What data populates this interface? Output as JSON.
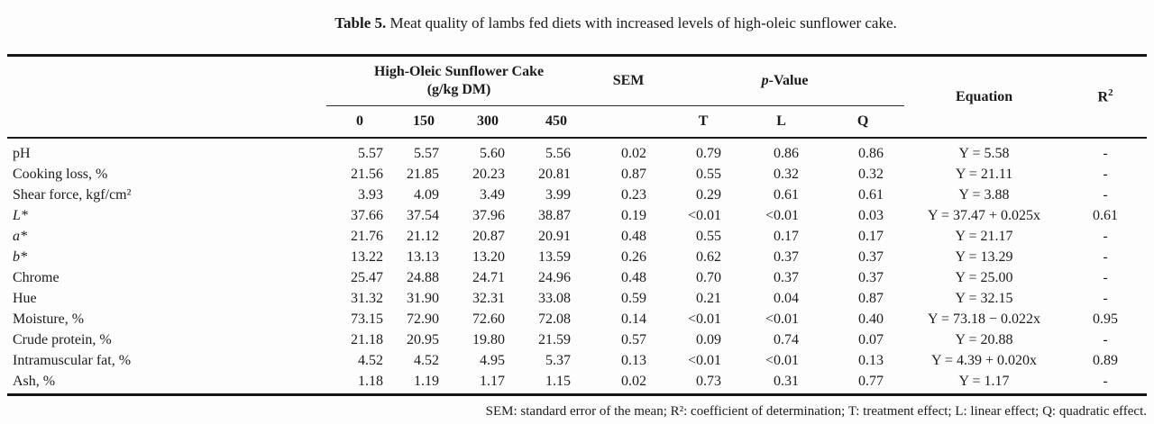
{
  "title": {
    "label": "Table 5.",
    "text": " Meat quality of lambs fed diets with increased levels of high-oleic sunflower cake."
  },
  "header": {
    "group1_line1": "High-Oleic Sunflower Cake",
    "group1_line2": "(g/kg DM)",
    "sem": "SEM",
    "pvalue_italic": "p",
    "pvalue_rest": "-Value",
    "equation": "Equation",
    "r2_base": "R",
    "r2_sup": "2",
    "doses": [
      "0",
      "150",
      "300",
      "450"
    ],
    "p_subcols": [
      "T",
      "L",
      "Q"
    ]
  },
  "rows": [
    {
      "label": "pH",
      "italic": false,
      "values": [
        "5.57",
        "5.57",
        "5.60",
        "5.56",
        "0.02",
        "0.79",
        "0.86",
        "0.86"
      ],
      "equation": "Y = 5.58",
      "r2": "-"
    },
    {
      "label": "Cooking loss, %",
      "italic": false,
      "values": [
        "21.56",
        "21.85",
        "20.23",
        "20.81",
        "0.87",
        "0.55",
        "0.32",
        "0.32"
      ],
      "equation": "Y = 21.11",
      "r2": "-"
    },
    {
      "label": "Shear force, kgf/cm²",
      "italic": false,
      "values": [
        "3.93",
        "4.09",
        "3.49",
        "3.99",
        "0.23",
        "0.29",
        "0.61",
        "0.61"
      ],
      "equation": "Y = 3.88",
      "r2": "-"
    },
    {
      "label": "L*",
      "italic": true,
      "values": [
        "37.66",
        "37.54",
        "37.96",
        "38.87",
        "0.19",
        "<0.01",
        "<0.01",
        "0.03"
      ],
      "equation": "Y = 37.47 + 0.025x",
      "r2": "0.61"
    },
    {
      "label": "a*",
      "italic": true,
      "values": [
        "21.76",
        "21.12",
        "20.87",
        "20.91",
        "0.48",
        "0.55",
        "0.17",
        "0.17"
      ],
      "equation": "Y = 21.17",
      "r2": "-"
    },
    {
      "label": "b*",
      "italic": true,
      "values": [
        "13.22",
        "13.13",
        "13.20",
        "13.59",
        "0.26",
        "0.62",
        "0.37",
        "0.37"
      ],
      "equation": "Y = 13.29",
      "r2": "-"
    },
    {
      "label": "Chrome",
      "italic": false,
      "values": [
        "25.47",
        "24.88",
        "24.71",
        "24.96",
        "0.48",
        "0.70",
        "0.37",
        "0.37"
      ],
      "equation": "Y = 25.00",
      "r2": "-"
    },
    {
      "label": "Hue",
      "italic": false,
      "values": [
        "31.32",
        "31.90",
        "32.31",
        "33.08",
        "0.59",
        "0.21",
        "0.04",
        "0.87"
      ],
      "equation": "Y = 32.15",
      "r2": "-"
    },
    {
      "label": "Moisture, %",
      "italic": false,
      "values": [
        "73.15",
        "72.90",
        "72.60",
        "72.08",
        "0.14",
        "<0.01",
        "<0.01",
        "0.40"
      ],
      "equation": "Y = 73.18 − 0.022x",
      "r2": "0.95"
    },
    {
      "label": "Crude protein, %",
      "italic": false,
      "values": [
        "21.18",
        "20.95",
        "19.80",
        "21.59",
        "0.57",
        "0.09",
        "0.74",
        "0.07"
      ],
      "equation": "Y = 20.88",
      "r2": "-"
    },
    {
      "label": "Intramuscular fat, %",
      "italic": false,
      "values": [
        "4.52",
        "4.52",
        "4.95",
        "5.37",
        "0.13",
        "<0.01",
        "<0.01",
        "0.13"
      ],
      "equation": "Y = 4.39 + 0.020x",
      "r2": "0.89"
    },
    {
      "label": "Ash, %",
      "italic": false,
      "values": [
        "1.18",
        "1.19",
        "1.17",
        "1.15",
        "0.02",
        "0.73",
        "0.31",
        "0.77"
      ],
      "equation": "Y = 1.17",
      "r2": "-"
    }
  ],
  "footnote": "SEM: standard error of the mean; R²: coefficient of determination; T: treatment effect; L: linear effect; Q: quadratic effect."
}
